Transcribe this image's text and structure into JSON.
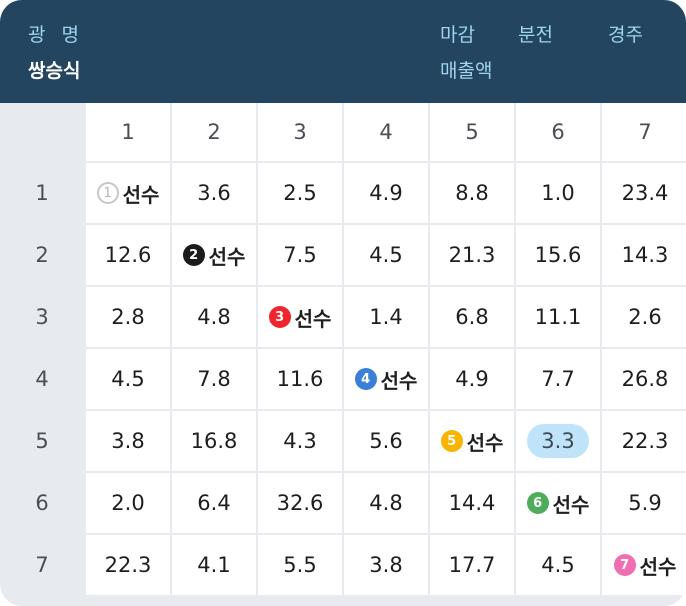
{
  "header": {
    "region": "광명",
    "bet_type": "쌍승식",
    "deadline_label": "마감",
    "minutes_label": "분전",
    "race_label": "경주",
    "sales_label": "매출액"
  },
  "columns": [
    "1",
    "2",
    "3",
    "4",
    "5",
    "6",
    "7"
  ],
  "self_label": "선수",
  "badge_colors": [
    "#ffffff",
    "#1b1b1b",
    "#f0262c",
    "#3b7fd6",
    "#f7b500",
    "#4fac5b",
    "#ef6fb1"
  ],
  "rows": [
    {
      "label": "1",
      "cells": [
        "self",
        "3.6",
        "2.5",
        "4.9",
        "8.8",
        "1.0",
        "23.4"
      ]
    },
    {
      "label": "2",
      "cells": [
        "12.6",
        "self",
        "7.5",
        "4.5",
        "21.3",
        "15.6",
        "14.3"
      ]
    },
    {
      "label": "3",
      "cells": [
        "2.8",
        "4.8",
        "self",
        "1.4",
        "6.8",
        "11.1",
        "2.6"
      ]
    },
    {
      "label": "4",
      "cells": [
        "4.5",
        "7.8",
        "11.6",
        "self",
        "4.9",
        "7.7",
        "26.8"
      ]
    },
    {
      "label": "5",
      "cells": [
        "3.8",
        "16.8",
        "4.3",
        "5.6",
        "self",
        "3.3",
        "22.3"
      ]
    },
    {
      "label": "6",
      "cells": [
        "2.0",
        "6.4",
        "32.6",
        "4.8",
        "14.4",
        "self",
        "5.9"
      ]
    },
    {
      "label": "7",
      "cells": [
        "22.3",
        "4.1",
        "5.5",
        "3.8",
        "17.7",
        "4.5",
        "self"
      ]
    }
  ],
  "highlight": {
    "row": 4,
    "col": 5
  }
}
